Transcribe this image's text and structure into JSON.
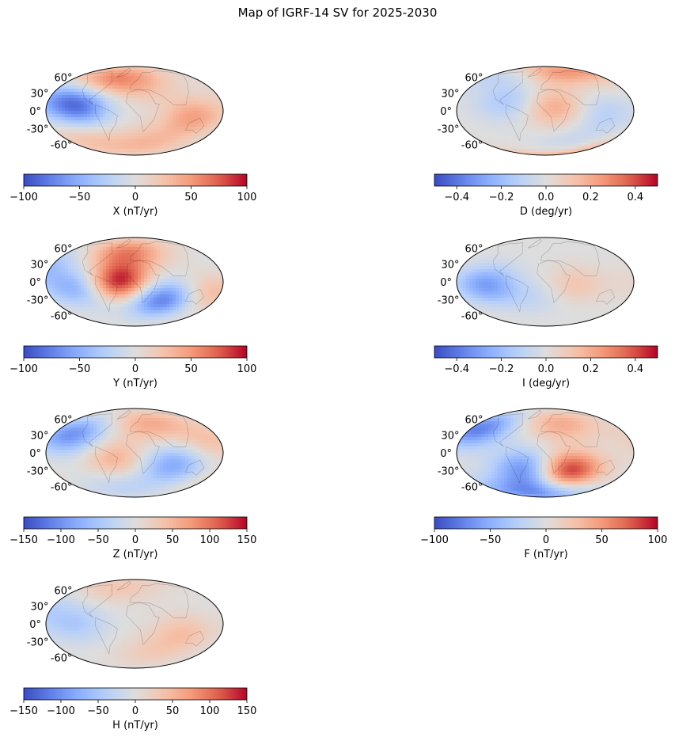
{
  "title": "Map of IGRF-14 SV for 2025-2030",
  "chart_data": [
    {
      "type": "heatmap",
      "projection": "mollweide",
      "xlabel": "X (nT/yr)",
      "lat_ticks": [
        "60°",
        "30°",
        "0°",
        "-30°",
        "-60°"
      ],
      "colorbar": {
        "cmap": "coolwarm",
        "vmin": -100,
        "vmax": 100,
        "ticks": [
          -100,
          -50,
          0,
          50,
          100
        ],
        "tick_labels": [
          "−100",
          "−50",
          "0",
          "50",
          "100"
        ]
      },
      "blobs": [
        {
          "lon": -55,
          "lat": 5,
          "value": -70
        },
        {
          "lon": -80,
          "lat": 25,
          "value": -45
        },
        {
          "lon": -40,
          "lat": 55,
          "value": 55
        },
        {
          "lon": 10,
          "lat": 45,
          "value": 25
        },
        {
          "lon": 60,
          "lat": -10,
          "value": 45
        },
        {
          "lon": 120,
          "lat": 20,
          "value": 20
        },
        {
          "lon": -150,
          "lat": -20,
          "value": -35
        },
        {
          "lon": 20,
          "lat": -55,
          "value": 30
        },
        {
          "lon": -60,
          "lat": -50,
          "value": 25
        }
      ]
    },
    {
      "type": "heatmap",
      "projection": "mollweide",
      "xlabel": "D (deg/yr)",
      "lat_ticks": [
        "60°",
        "30°",
        "0°",
        "-30°",
        "-60°"
      ],
      "colorbar": {
        "cmap": "coolwarm",
        "vmin": -0.5,
        "vmax": 0.5,
        "ticks": [
          -0.4,
          -0.2,
          0,
          0.2,
          0.4
        ],
        "tick_labels": [
          "−0.4",
          "−0.2",
          "0.0",
          "0.2",
          "0.4"
        ]
      },
      "blobs": [
        {
          "lon": 10,
          "lat": 78,
          "value": 0.5
        },
        {
          "lon": -50,
          "lat": 75,
          "value": -0.35
        },
        {
          "lon": 10,
          "lat": 5,
          "value": 0.2
        },
        {
          "lon": -40,
          "lat": 15,
          "value": -0.15
        },
        {
          "lon": 60,
          "lat": -5,
          "value": -0.12
        },
        {
          "lon": 100,
          "lat": -75,
          "value": 0.45
        },
        {
          "lon": 60,
          "lat": -70,
          "value": -0.3
        },
        {
          "lon": 150,
          "lat": -25,
          "value": -0.1
        }
      ]
    },
    {
      "type": "heatmap",
      "projection": "mollweide",
      "xlabel": "Y (nT/yr)",
      "lat_ticks": [
        "60°",
        "30°",
        "0°",
        "-30°",
        "-60°"
      ],
      "colorbar": {
        "cmap": "coolwarm",
        "vmin": -100,
        "vmax": 100,
        "ticks": [
          -100,
          -50,
          0,
          50,
          100
        ],
        "tick_labels": [
          "−100",
          "−50",
          "0",
          "50",
          "100"
        ]
      },
      "blobs": [
        {
          "lon": -15,
          "lat": 0,
          "value": 95
        },
        {
          "lon": -10,
          "lat": 50,
          "value": 60
        },
        {
          "lon": -60,
          "lat": -10,
          "value": -50
        },
        {
          "lon": 30,
          "lat": -30,
          "value": -80
        },
        {
          "lon": -100,
          "lat": 25,
          "value": -40
        },
        {
          "lon": 80,
          "lat": -20,
          "value": 35
        },
        {
          "lon": 140,
          "lat": 20,
          "value": -25
        },
        {
          "lon": -150,
          "lat": -10,
          "value": 20
        }
      ]
    },
    {
      "type": "heatmap",
      "projection": "mollweide",
      "xlabel": "I (deg/yr)",
      "lat_ticks": [
        "60°",
        "30°",
        "0°",
        "-30°",
        "-60°"
      ],
      "colorbar": {
        "cmap": "coolwarm",
        "vmin": -0.5,
        "vmax": 0.5,
        "ticks": [
          -0.4,
          -0.2,
          0,
          0.2,
          0.4
        ],
        "tick_labels": [
          "−0.4",
          "−0.2",
          "0.0",
          "0.2",
          "0.4"
        ]
      },
      "blobs": [
        {
          "lon": -60,
          "lat": -5,
          "value": -0.3
        },
        {
          "lon": 30,
          "lat": -5,
          "value": 0.12
        },
        {
          "lon": 100,
          "lat": 0,
          "value": 0.05
        },
        {
          "lon": -10,
          "lat": -25,
          "value": -0.08
        }
      ]
    },
    {
      "type": "heatmap",
      "projection": "mollweide",
      "xlabel": "Z (nT/yr)",
      "lat_ticks": [
        "60°",
        "30°",
        "0°",
        "-30°",
        "-60°"
      ],
      "colorbar": {
        "cmap": "coolwarm",
        "vmin": -150,
        "vmax": 150,
        "ticks": [
          -150,
          -100,
          -50,
          0,
          50,
          100,
          150
        ],
        "tick_labels": [
          "−150",
          "−100",
          "−50",
          "0",
          "50",
          "100",
          "150"
        ]
      },
      "blobs": [
        {
          "lon": -70,
          "lat": 30,
          "value": -100
        },
        {
          "lon": 40,
          "lat": -20,
          "value": -80
        },
        {
          "lon": 20,
          "lat": 50,
          "value": 60
        },
        {
          "lon": -20,
          "lat": -10,
          "value": 55
        },
        {
          "lon": 80,
          "lat": 20,
          "value": 40
        },
        {
          "lon": -140,
          "lat": -30,
          "value": 50
        },
        {
          "lon": 130,
          "lat": -40,
          "value": 45
        },
        {
          "lon": -20,
          "lat": -60,
          "value": -30
        }
      ]
    },
    {
      "type": "heatmap",
      "projection": "mollweide",
      "xlabel": "F (nT/yr)",
      "lat_ticks": [
        "60°",
        "30°",
        "0°",
        "-30°",
        "-60°"
      ],
      "colorbar": {
        "cmap": "coolwarm",
        "vmin": -100,
        "vmax": 100,
        "ticks": [
          -100,
          -50,
          0,
          50,
          100
        ],
        "tick_labels": [
          "−100",
          "−50",
          "0",
          "50",
          "100"
        ]
      },
      "blobs": [
        {
          "lon": -80,
          "lat": 40,
          "value": -75
        },
        {
          "lon": 25,
          "lat": -30,
          "value": 95
        },
        {
          "lon": -20,
          "lat": -25,
          "value": -65
        },
        {
          "lon": 20,
          "lat": 50,
          "value": 40
        },
        {
          "lon": -30,
          "lat": -70,
          "value": -70
        },
        {
          "lon": 100,
          "lat": 20,
          "value": 15
        },
        {
          "lon": -150,
          "lat": 10,
          "value": -30
        }
      ]
    },
    {
      "type": "heatmap",
      "projection": "mollweide",
      "xlabel": "H (nT/yr)",
      "lat_ticks": [
        "60°",
        "30°",
        "0°",
        "-30°",
        "-60°"
      ],
      "colorbar": {
        "cmap": "coolwarm",
        "vmin": -150,
        "vmax": 150,
        "ticks": [
          -150,
          -100,
          -50,
          0,
          50,
          100,
          150
        ],
        "tick_labels": [
          "−150",
          "−100",
          "−50",
          "0",
          "50",
          "100",
          "150"
        ]
      },
      "blobs": [
        {
          "lon": -60,
          "lat": 0,
          "value": -45
        },
        {
          "lon": -100,
          "lat": 25,
          "value": -35
        },
        {
          "lon": 50,
          "lat": -15,
          "value": 40
        },
        {
          "lon": -30,
          "lat": 65,
          "value": 35
        },
        {
          "lon": 20,
          "lat": -50,
          "value": 25
        },
        {
          "lon": 130,
          "lat": 10,
          "value": 15
        },
        {
          "lon": -150,
          "lat": -20,
          "value": -20
        }
      ]
    }
  ]
}
